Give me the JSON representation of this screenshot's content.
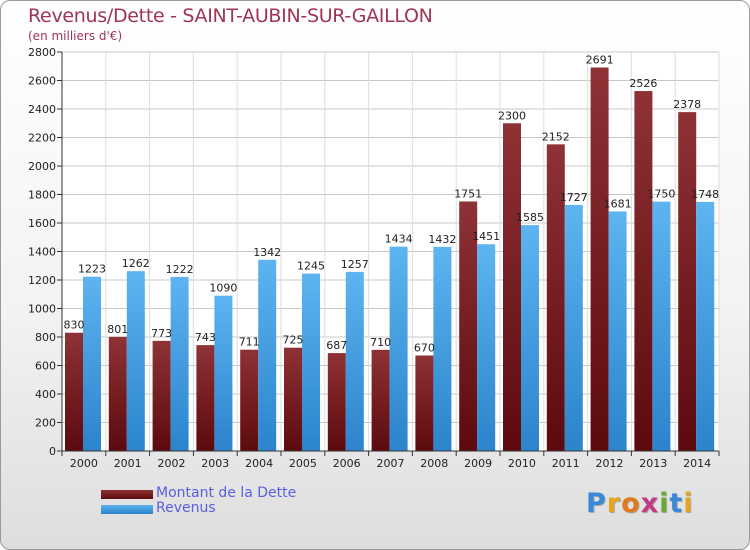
{
  "chart_data": {
    "type": "bar",
    "title": "Revenus/Dette - SAINT-AUBIN-SUR-GAILLON",
    "subtitle": "(en milliers d'€)",
    "categories": [
      "2000",
      "2001",
      "2002",
      "2003",
      "2004",
      "2005",
      "2006",
      "2007",
      "2008",
      "2009",
      "2010",
      "2011",
      "2012",
      "2013",
      "2014"
    ],
    "series": [
      {
        "name": "Montant de la Dette",
        "color": "#7a1f24",
        "values": [
          830,
          801,
          773,
          743,
          711,
          725,
          687,
          710,
          670,
          1751,
          2300,
          2152,
          2691,
          2526,
          2378
        ]
      },
      {
        "name": "Revenus",
        "color": "#4aa3e6",
        "values": [
          1223,
          1262,
          1222,
          1090,
          1342,
          1245,
          1257,
          1434,
          1432,
          1451,
          1585,
          1727,
          1681,
          1750,
          1748
        ]
      }
    ],
    "ylim": [
      0,
      2800
    ],
    "yticks": [
      0,
      200,
      400,
      600,
      800,
      1000,
      1200,
      1400,
      1600,
      1800,
      2000,
      2200,
      2400,
      2600,
      2800
    ],
    "xlabel": "",
    "ylabel": "",
    "grid": true,
    "legend": "bottom-left"
  },
  "logo": {
    "text": "Proxiti",
    "letters": [
      "P",
      "r",
      "o",
      "x",
      "i",
      "t",
      "i"
    ],
    "colors": [
      "#3a88d8",
      "#e4a520",
      "#e07a1c",
      "#c23a83",
      "#6aa935",
      "#3a88d8",
      "#e4a520"
    ]
  }
}
